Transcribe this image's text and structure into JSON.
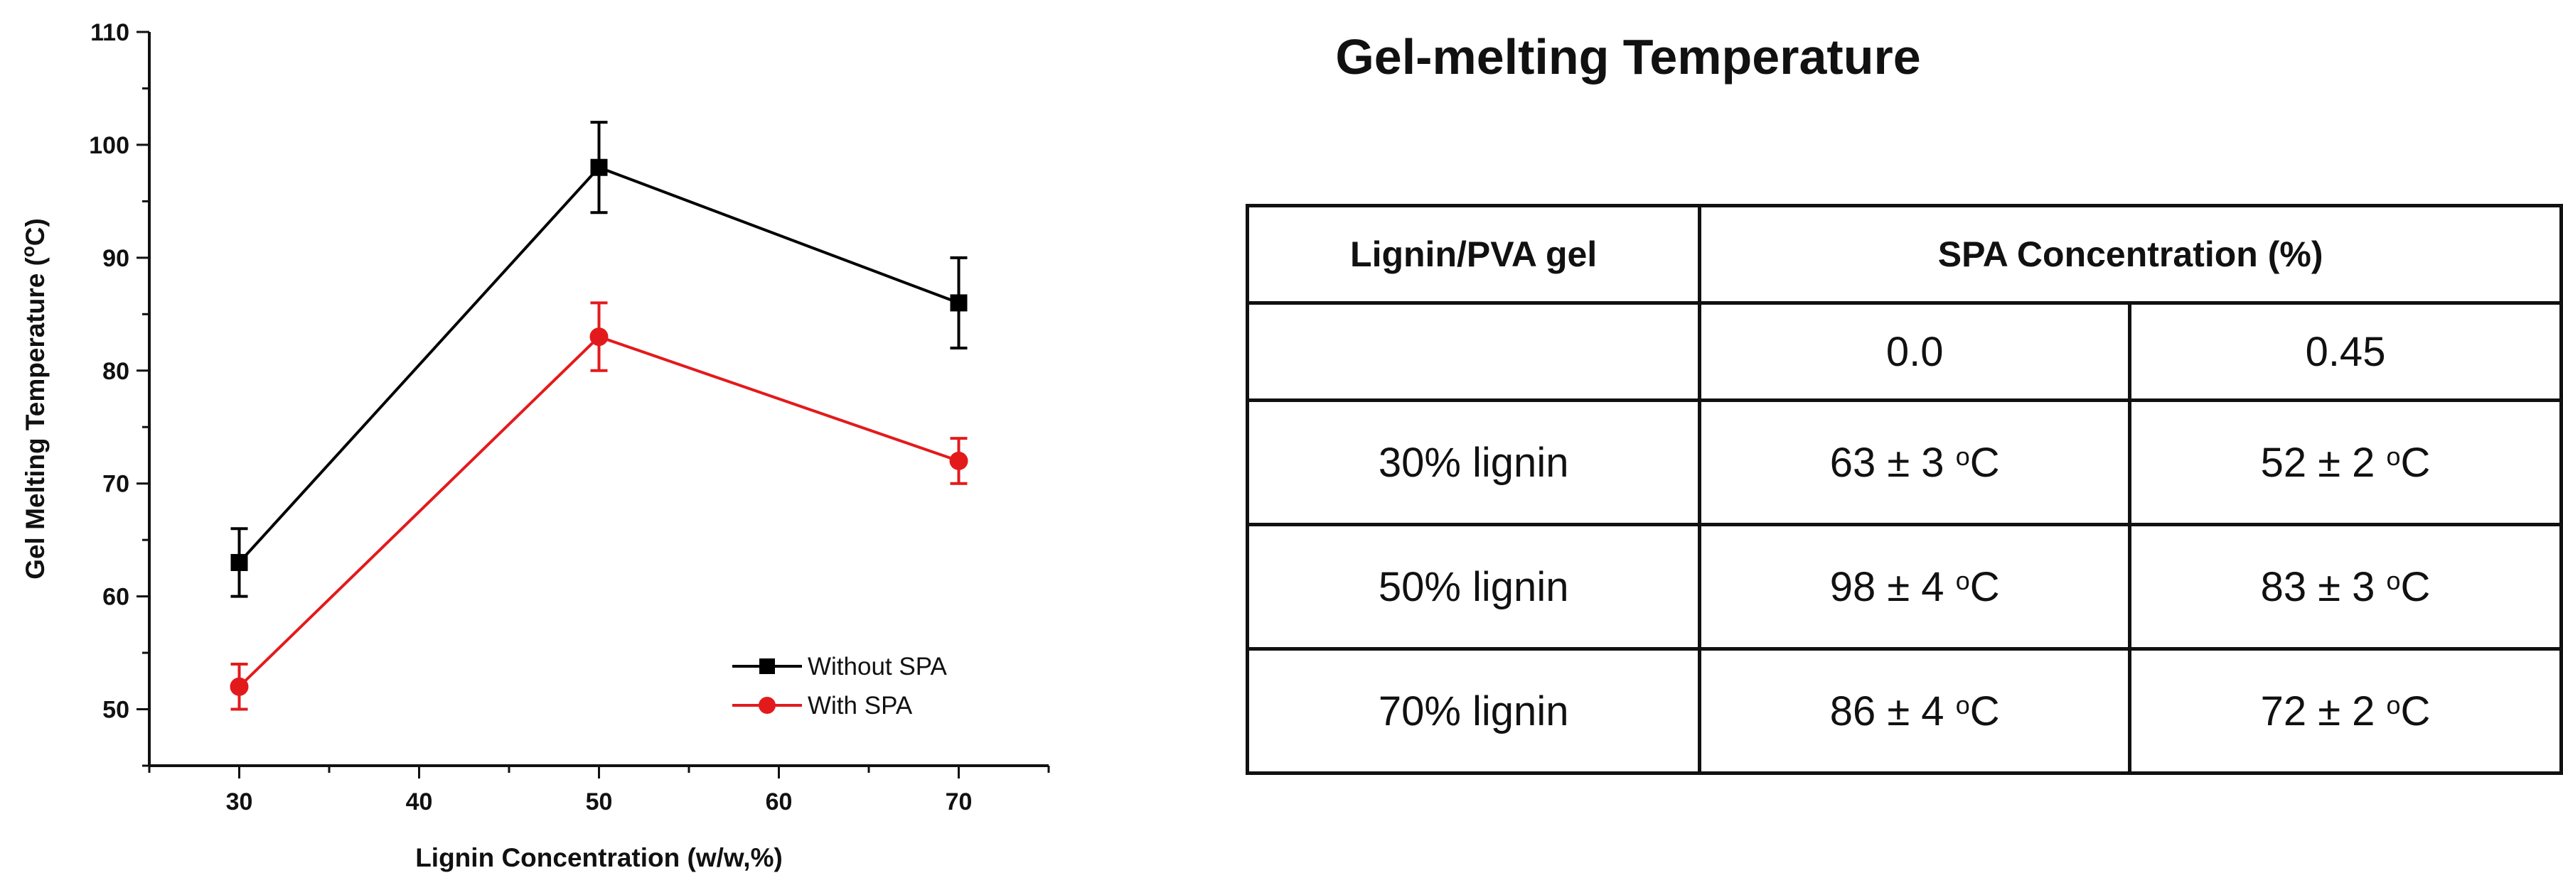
{
  "chart_data": {
    "type": "line",
    "xlabel": "Lignin Concentration (w/w,%)",
    "ylabel_main": "Gel Melting Temperature (",
    "ylabel_sup": "o",
    "ylabel_end": "C)",
    "xlim": [
      25,
      75
    ],
    "ylim": [
      45,
      110
    ],
    "xticks": [
      30,
      40,
      50,
      60,
      70
    ],
    "yticks": [
      50,
      60,
      70,
      80,
      90,
      100,
      110
    ],
    "legend_position": "bottom-right",
    "series": [
      {
        "name": "Without SPA",
        "color": "#000000",
        "marker": "square",
        "x": [
          30,
          50,
          70
        ],
        "y": [
          63,
          98,
          86
        ],
        "err": [
          3,
          4,
          4
        ]
      },
      {
        "name": "With SPA",
        "color": "#e31a1c",
        "marker": "circle",
        "x": [
          30,
          50,
          70
        ],
        "y": [
          52,
          83,
          72
        ],
        "err": [
          2,
          3,
          2
        ]
      }
    ]
  },
  "table": {
    "title": "Gel-melting Temperature",
    "header_col1": "Lignin/PVA gel",
    "header_col2": "SPA Concentration (%)",
    "sub_col2": "0.0",
    "sub_col3": "0.45",
    "unit_sup": "o",
    "unit": "C",
    "rows": [
      {
        "label": "30% lignin",
        "v1": "63 ± 3 ",
        "v2": "52 ± 2 "
      },
      {
        "label": "50% lignin",
        "v1": "98 ± 4 ",
        "v2": "83 ± 3 "
      },
      {
        "label": "70% lignin",
        "v1": "86 ± 4 ",
        "v2": "72 ± 2 "
      }
    ]
  }
}
